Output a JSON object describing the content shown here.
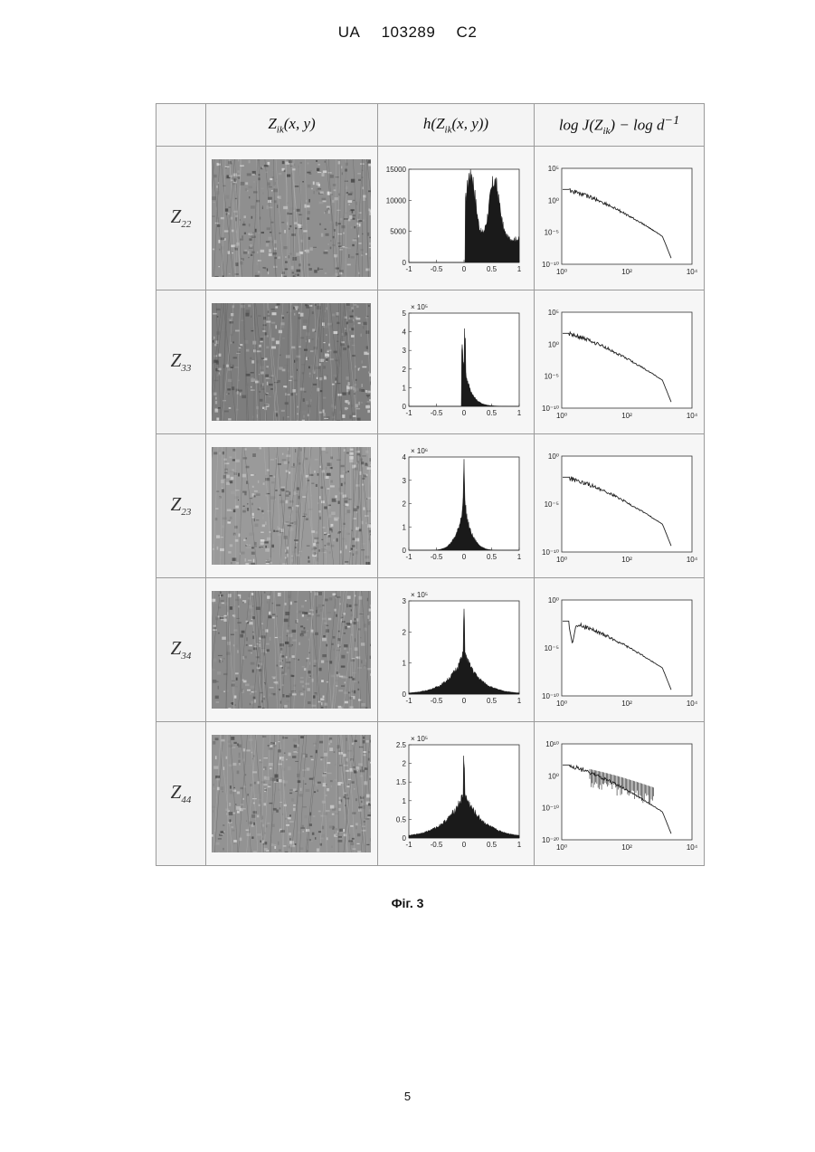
{
  "header": {
    "country": "UA",
    "number": "103289",
    "kind": "C2"
  },
  "table": {
    "columns": [
      {
        "id": "image",
        "base": "Z",
        "sub": "ik",
        "suffix": "(x, y)"
      },
      {
        "id": "histogram",
        "prefix": "h(",
        "base": "Z",
        "sub": "ik",
        "suffix": "(x, y))"
      },
      {
        "id": "spectrum",
        "prefix": "log J(",
        "base": "Z",
        "sub": "ik",
        "suffix": ") − log d",
        "sup": "−1"
      }
    ],
    "rows": [
      {
        "label_base": "Z",
        "label_sub": "22",
        "image_tone": "#8f8f8f",
        "hist": {
          "y_ticks": [
            "0",
            "5000",
            "10000",
            "15000"
          ],
          "y_exp": "",
          "x_ticks": [
            "-1",
            "-0.5",
            "0",
            "0.5",
            "1"
          ],
          "ymax": 16000,
          "shape": "bimodal"
        },
        "spec": {
          "y_ticks": [
            "10⁻¹⁰",
            "10⁻⁵",
            "10⁰",
            "10⁵"
          ],
          "x_ticks": [
            "10⁰",
            "10²",
            "10⁴"
          ],
          "style": "smooth"
        }
      },
      {
        "label_base": "Z",
        "label_sub": "33",
        "image_tone": "#7d7d7d",
        "hist": {
          "y_ticks": [
            "0",
            "1",
            "2",
            "3",
            "4",
            "5"
          ],
          "y_exp": "× 10⁵",
          "x_ticks": [
            "-1",
            "-0.5",
            "0",
            "0.5",
            "1"
          ],
          "ymax": 5,
          "shape": "skewed"
        },
        "spec": {
          "y_ticks": [
            "10⁻¹⁰",
            "10⁻⁵",
            "10⁰",
            "10⁵"
          ],
          "x_ticks": [
            "10⁰",
            "10²",
            "10⁴"
          ],
          "style": "smooth"
        }
      },
      {
        "label_base": "Z",
        "label_sub": "23",
        "image_tone": "#9a9a9a",
        "hist": {
          "y_ticks": [
            "0",
            "1",
            "2",
            "3",
            "4"
          ],
          "y_exp": "× 10⁶",
          "x_ticks": [
            "-1",
            "-0.5",
            "0",
            "0.5",
            "1"
          ],
          "ymax": 4,
          "shape": "peaked"
        },
        "spec": {
          "y_ticks": [
            "10⁻¹⁰",
            "10⁻⁵",
            "10⁰"
          ],
          "x_ticks": [
            "10⁰",
            "10²",
            "10⁴"
          ],
          "style": "smooth"
        }
      },
      {
        "label_base": "Z",
        "label_sub": "34",
        "image_tone": "#8a8a8a",
        "hist": {
          "y_ticks": [
            "0",
            "1",
            "2",
            "3"
          ],
          "y_exp": "× 10⁵",
          "x_ticks": [
            "-1",
            "-0.5",
            "0",
            "0.5",
            "1"
          ],
          "ymax": 3,
          "shape": "laplace"
        },
        "spec": {
          "y_ticks": [
            "10⁻¹⁰",
            "10⁻⁵",
            "10⁰"
          ],
          "x_ticks": [
            "10⁰",
            "10²",
            "10⁴"
          ],
          "style": "dip"
        }
      },
      {
        "label_base": "Z",
        "label_sub": "44",
        "image_tone": "#939393",
        "hist": {
          "y_ticks": [
            "0",
            "0.5",
            "1",
            "1.5",
            "2",
            "2.5"
          ],
          "y_exp": "× 10⁵",
          "x_ticks": [
            "-1",
            "-0.5",
            "0",
            "0.5",
            "1"
          ],
          "ymax": 2.5,
          "shape": "laplace_wide"
        },
        "spec": {
          "y_ticks": [
            "10⁻²⁰",
            "10⁻¹⁰",
            "10⁰",
            "10¹⁰"
          ],
          "x_ticks": [
            "10⁰",
            "10²",
            "10⁴"
          ],
          "style": "noisy"
        }
      }
    ]
  },
  "caption": "Фіг. 3",
  "page_number": "5"
}
